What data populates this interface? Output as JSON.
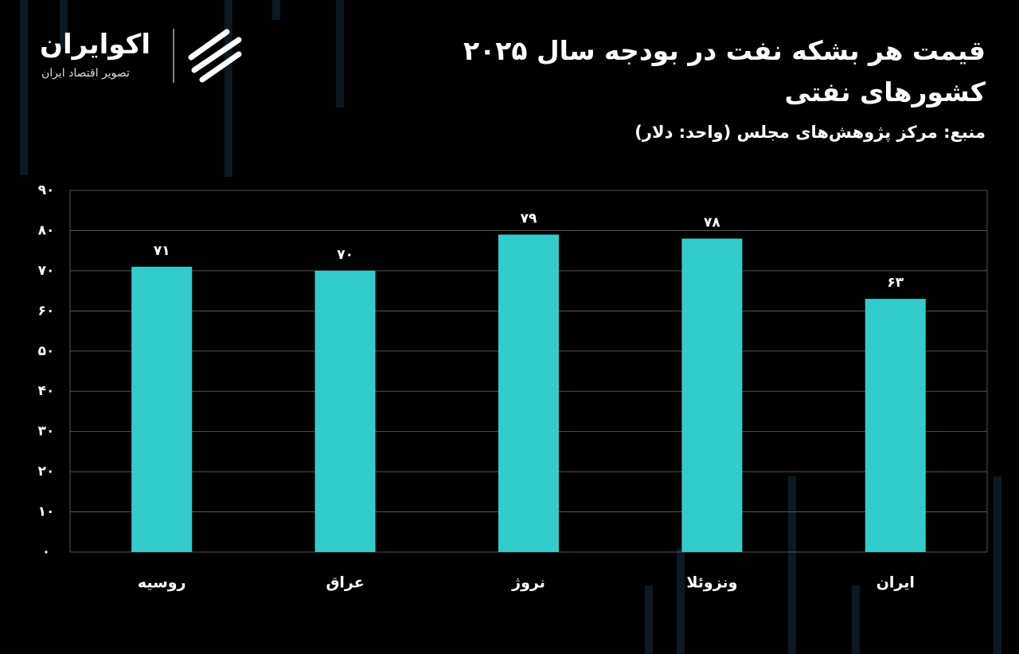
{
  "logo": {
    "name": "اکوایران",
    "tagline": "تصویر اقتصاد ایران"
  },
  "chart_data": {
    "type": "bar",
    "title": "قیمت هر بشکه نفت در بودجه سال ۲۰۲۵ کشورهای نفتی",
    "subtitle": "منبع: مرکز پژوهش‌های مجلس (واحد: دلار)",
    "categories": [
      "روسیه",
      "عراق",
      "نروژ",
      "ونزوئلا",
      "ایران"
    ],
    "values": [
      71,
      70,
      79,
      78,
      63
    ],
    "value_labels": [
      "۷۱",
      "۷۰",
      "۷۹",
      "۷۸",
      "۶۳"
    ],
    "color": "#33cccc",
    "ylim": [
      0,
      90
    ],
    "yticks": [
      {
        "value": 0,
        "label": "۰"
      },
      {
        "value": 10,
        "label": "۱۰"
      },
      {
        "value": 20,
        "label": "۲۰"
      },
      {
        "value": 30,
        "label": "۳۰"
      },
      {
        "value": 40,
        "label": "۴۰"
      },
      {
        "value": 50,
        "label": "۵۰"
      },
      {
        "value": 60,
        "label": "۶۰"
      },
      {
        "value": 70,
        "label": "۷۰"
      },
      {
        "value": 80,
        "label": "۸۰"
      },
      {
        "value": 90,
        "label": "۹۰"
      }
    ],
    "grid": true
  }
}
